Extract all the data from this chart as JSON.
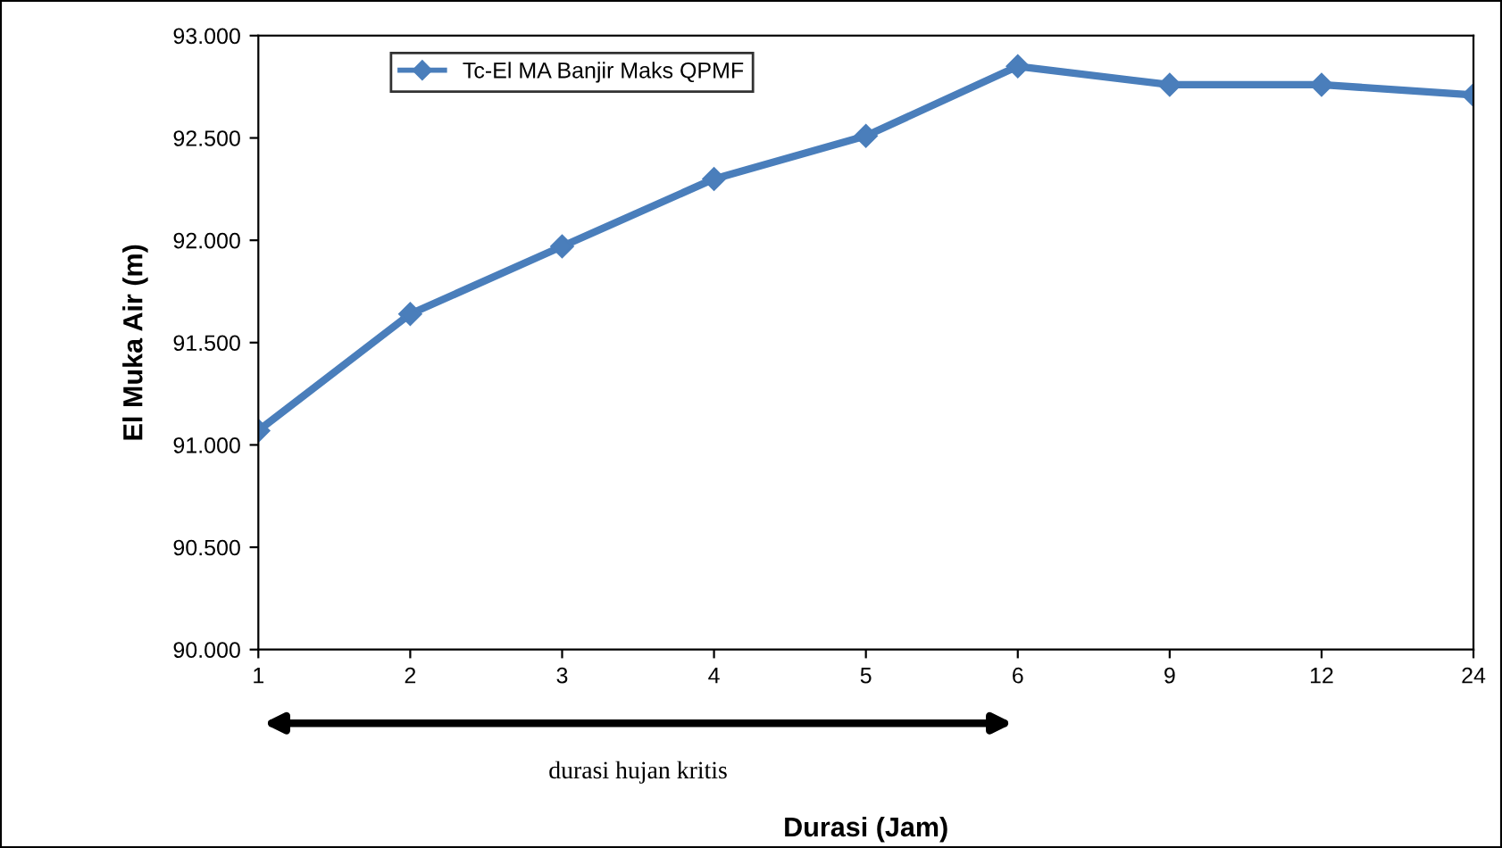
{
  "chart_data": {
    "type": "line",
    "xlabel": "Durasi (Jam)",
    "ylabel": "El Muka Air (m)",
    "categories": [
      "1",
      "2",
      "3",
      "4",
      "5",
      "6",
      "9",
      "12",
      "24"
    ],
    "series": [
      {
        "name": "Tc-El MA Banjir Maks QPMF",
        "color": "#4a7ebb",
        "values": [
          91.07,
          91.64,
          91.97,
          92.3,
          92.51,
          92.85,
          92.76,
          92.76,
          92.71
        ]
      }
    ],
    "ylim": [
      90,
      93
    ],
    "yticks": [
      {
        "value": 90,
        "label": "90.000"
      },
      {
        "value": 90.5,
        "label": "90.500"
      },
      {
        "value": 91,
        "label": "91.000"
      },
      {
        "value": 91.5,
        "label": "91.500"
      },
      {
        "value": 92,
        "label": "92.000"
      },
      {
        "value": 92.5,
        "label": "92.500"
      },
      {
        "value": 93,
        "label": "93.000"
      }
    ],
    "annotations": [
      "durasi hujan kritis"
    ],
    "legend": "top left",
    "grid": false,
    "marker": "diamond",
    "line_style": "solid"
  }
}
